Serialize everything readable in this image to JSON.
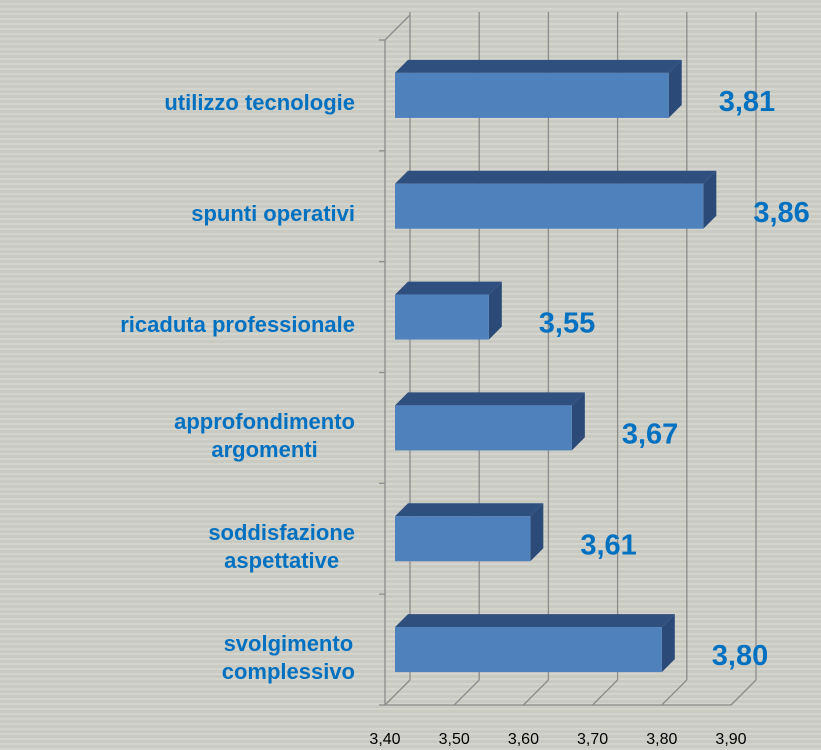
{
  "chart_data": {
    "type": "bar3d_horizontal",
    "categories": [
      "utilizzo tecnologie",
      "spunti operativi",
      "ricaduta professionale",
      "approfondimento\nargomenti",
      "soddisfazione\naspettative",
      "svolgimento\ncomplessivo"
    ],
    "values": [
      3.81,
      3.86,
      3.55,
      3.67,
      3.61,
      3.8
    ],
    "value_labels": [
      "3,81",
      "3,86",
      "3,55",
      "3,67",
      "3,61",
      "3,80"
    ],
    "color": "#4f81bd",
    "xlim": [
      3.4,
      3.9
    ],
    "xticks": [
      {
        "value": 3.4,
        "label": "3,40"
      },
      {
        "value": 3.5,
        "label": "3,50"
      },
      {
        "value": 3.6,
        "label": "3,60"
      },
      {
        "value": 3.7,
        "label": "3,70"
      },
      {
        "value": 3.8,
        "label": "3,80"
      },
      {
        "value": 3.9,
        "label": "3,90"
      }
    ],
    "grid": true
  }
}
